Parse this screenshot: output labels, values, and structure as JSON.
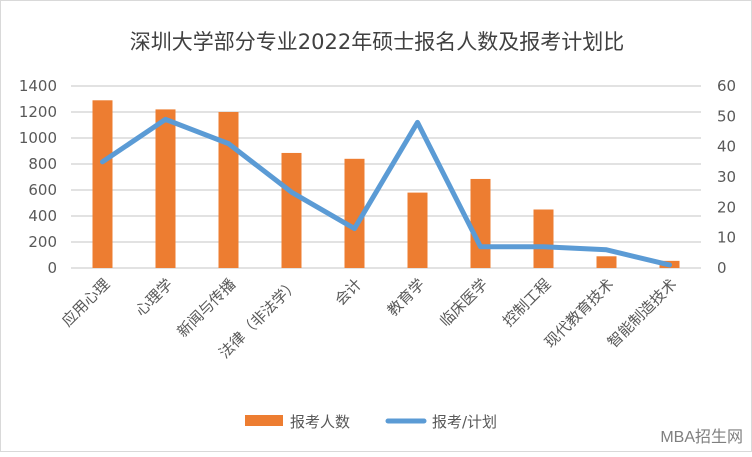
{
  "chart_data": {
    "type": "bar+line",
    "title": "深圳大学部分专业2022年硕士报名人数及报考计划比",
    "categories": [
      "应用心理",
      "心理学",
      "新闻与传播",
      "法律（非法学）",
      "会计",
      "教育学",
      "临床医学",
      "控制工程",
      "现代教育技术",
      "智能制造技术"
    ],
    "series": [
      {
        "name": "报考人数",
        "type": "bar",
        "axis": "left",
        "color": "#ED7D31",
        "values": [
          1290,
          1220,
          1200,
          885,
          840,
          580,
          685,
          450,
          90,
          55
        ]
      },
      {
        "name": "报考/计划",
        "type": "line",
        "axis": "right",
        "color": "#5B9BD5",
        "values": [
          35,
          49,
          41,
          25,
          13,
          48,
          7,
          7,
          6,
          1
        ]
      }
    ],
    "y_left": {
      "range": [
        0,
        1400
      ],
      "ticks": [
        "0",
        "200",
        "400",
        "600",
        "800",
        "1000",
        "1200",
        "1400"
      ]
    },
    "y_right": {
      "range": [
        0,
        60
      ],
      "ticks": [
        "0",
        "10",
        "20",
        "30",
        "40",
        "50",
        "60"
      ]
    },
    "grid": true,
    "legend": "bottom"
  },
  "watermark": "MBA招生网"
}
